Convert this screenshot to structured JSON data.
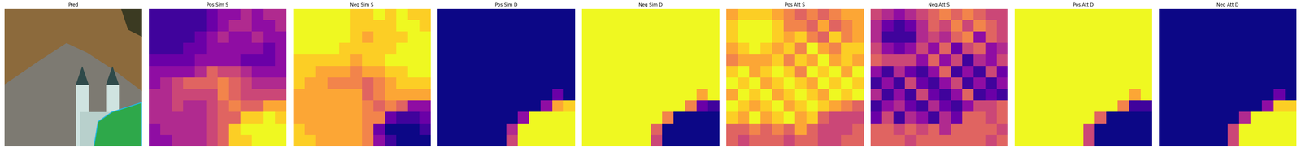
{
  "chart_data": [
    {
      "type": "image",
      "title": "Pred",
      "tick_labels": false
    },
    {
      "type": "heatmap",
      "title": "Pos Sim S",
      "color": "plasma",
      "vmin": 0,
      "vmax": 1,
      "tick_labels": false,
      "cells": [
        [
          0.1,
          0.1,
          0.1,
          0.1,
          0.1,
          0.2,
          0.3,
          0.3,
          0.4,
          0.3,
          0.4,
          0.4
        ],
        [
          0.1,
          0.1,
          0.1,
          0.1,
          0.1,
          0.2,
          0.3,
          0.4,
          0.4,
          0.3,
          0.3,
          0.4
        ],
        [
          0.1,
          0.1,
          0.1,
          0.1,
          0.2,
          0.3,
          0.4,
          0.3,
          0.3,
          0.4,
          0.3,
          0.3
        ],
        [
          0.1,
          0.1,
          0.1,
          0.2,
          0.2,
          0.3,
          0.3,
          0.3,
          0.3,
          0.3,
          0.2,
          0.3
        ],
        [
          0.2,
          0.2,
          0.2,
          0.2,
          0.3,
          0.3,
          0.3,
          0.3,
          0.2,
          0.2,
          0.2,
          0.3
        ],
        [
          0.3,
          0.3,
          0.3,
          0.3,
          0.4,
          0.6,
          0.5,
          0.5,
          0.4,
          0.3,
          0.3,
          0.3
        ],
        [
          0.3,
          0.4,
          0.5,
          0.6,
          0.6,
          0.6,
          0.7,
          0.6,
          0.5,
          0.4,
          0.4,
          0.4
        ],
        [
          0.4,
          0.4,
          0.5,
          0.5,
          0.5,
          0.5,
          0.7,
          0.6,
          0.5,
          0.5,
          0.5,
          0.5
        ],
        [
          0.4,
          0.4,
          0.5,
          0.4,
          0.4,
          0.5,
          0.6,
          0.7,
          0.6,
          0.6,
          0.8,
          0.8
        ],
        [
          0.4,
          0.4,
          0.4,
          0.4,
          0.4,
          0.5,
          0.6,
          0.6,
          0.9,
          0.9,
          1.0,
          0.9
        ],
        [
          0.3,
          0.4,
          0.4,
          0.4,
          0.4,
          0.5,
          0.6,
          0.9,
          1.0,
          1.0,
          1.0,
          1.0
        ],
        [
          0.3,
          0.3,
          0.4,
          0.4,
          0.4,
          0.5,
          0.6,
          0.9,
          0.9,
          1.0,
          1.0,
          1.0
        ]
      ]
    },
    {
      "type": "heatmap",
      "title": "Neg Sim S",
      "color": "plasma",
      "vmin": 0,
      "vmax": 1,
      "tick_labels": false,
      "cells": [
        [
          1.0,
          1.0,
          1.0,
          1.0,
          1.0,
          0.9,
          0.9,
          1.0,
          0.9,
          1.0,
          0.9,
          0.9
        ],
        [
          1.0,
          1.0,
          1.0,
          1.0,
          1.0,
          0.9,
          0.9,
          0.9,
          0.9,
          1.0,
          1.0,
          0.9
        ],
        [
          1.0,
          1.0,
          1.0,
          1.0,
          1.0,
          0.9,
          0.8,
          0.9,
          0.9,
          0.9,
          1.0,
          1.0
        ],
        [
          1.0,
          1.0,
          1.0,
          1.0,
          0.9,
          0.9,
          0.9,
          0.9,
          0.9,
          1.0,
          1.0,
          1.0
        ],
        [
          0.9,
          0.9,
          0.9,
          0.9,
          0.9,
          0.8,
          0.9,
          0.9,
          1.0,
          1.0,
          1.0,
          1.0
        ],
        [
          0.9,
          0.9,
          0.8,
          0.8,
          0.8,
          0.7,
          0.8,
          0.8,
          0.9,
          0.9,
          1.0,
          1.0
        ],
        [
          0.9,
          0.8,
          0.8,
          0.7,
          0.7,
          0.7,
          0.6,
          0.7,
          0.8,
          0.9,
          0.9,
          0.9
        ],
        [
          0.8,
          0.8,
          0.8,
          0.8,
          0.8,
          0.8,
          0.6,
          0.7,
          0.8,
          0.8,
          0.8,
          0.8
        ],
        [
          0.8,
          0.8,
          0.8,
          0.8,
          0.8,
          0.8,
          0.7,
          0.6,
          0.7,
          0.6,
          0.3,
          0.3
        ],
        [
          0.8,
          0.8,
          0.8,
          0.8,
          0.8,
          0.8,
          0.7,
          0.7,
          0.2,
          0.1,
          0.1,
          0.2
        ],
        [
          0.9,
          0.8,
          0.8,
          0.8,
          0.8,
          0.8,
          0.7,
          0.2,
          0.0,
          0.0,
          0.0,
          0.1
        ],
        [
          0.9,
          0.9,
          0.8,
          0.8,
          0.8,
          0.8,
          0.7,
          0.3,
          0.1,
          0.0,
          0.0,
          0.0
        ]
      ]
    },
    {
      "type": "heatmap",
      "title": "Pos Sim D",
      "color": "plasma",
      "vmin": 0,
      "vmax": 1,
      "tick_labels": false,
      "cells": [
        [
          0,
          0,
          0,
          0,
          0,
          0,
          0,
          0,
          0,
          0,
          0,
          0
        ],
        [
          0,
          0,
          0,
          0,
          0,
          0,
          0,
          0,
          0,
          0,
          0,
          0
        ],
        [
          0,
          0,
          0,
          0,
          0,
          0,
          0,
          0,
          0,
          0,
          0,
          0
        ],
        [
          0,
          0,
          0,
          0,
          0,
          0,
          0,
          0,
          0,
          0,
          0,
          0
        ],
        [
          0,
          0,
          0,
          0,
          0,
          0,
          0,
          0,
          0,
          0,
          0,
          0
        ],
        [
          0,
          0,
          0,
          0,
          0,
          0,
          0,
          0,
          0,
          0,
          0,
          0
        ],
        [
          0,
          0,
          0,
          0,
          0,
          0,
          0,
          0,
          0,
          0,
          0,
          0
        ],
        [
          0,
          0,
          0,
          0,
          0,
          0,
          0,
          0,
          0,
          0,
          0.2,
          0
        ],
        [
          0,
          0,
          0,
          0,
          0,
          0,
          0,
          0,
          0,
          0.3,
          0.8,
          0.9
        ],
        [
          0,
          0,
          0,
          0,
          0,
          0,
          0,
          0.3,
          1,
          1,
          1,
          1
        ],
        [
          0,
          0,
          0,
          0,
          0,
          0,
          0.4,
          1,
          1,
          1,
          1,
          1
        ],
        [
          0,
          0,
          0,
          0,
          0,
          0,
          0.5,
          1,
          1,
          1,
          1,
          1
        ]
      ]
    },
    {
      "type": "heatmap",
      "title": "Neg Sim D",
      "color": "plasma",
      "vmin": 0,
      "vmax": 1,
      "tick_labels": false,
      "cells": [
        [
          1,
          1,
          1,
          1,
          1,
          1,
          1,
          1,
          1,
          1,
          1,
          1
        ],
        [
          1,
          1,
          1,
          1,
          1,
          1,
          1,
          1,
          1,
          1,
          1,
          1
        ],
        [
          1,
          1,
          1,
          1,
          1,
          1,
          1,
          1,
          1,
          1,
          1,
          1
        ],
        [
          1,
          1,
          1,
          1,
          1,
          1,
          1,
          1,
          1,
          1,
          1,
          1
        ],
        [
          1,
          1,
          1,
          1,
          1,
          1,
          1,
          1,
          1,
          1,
          1,
          1
        ],
        [
          1,
          1,
          1,
          1,
          1,
          1,
          1,
          1,
          1,
          1,
          1,
          1
        ],
        [
          1,
          1,
          1,
          1,
          1,
          1,
          1,
          1,
          1,
          1,
          1,
          1
        ],
        [
          1,
          1,
          1,
          1,
          1,
          1,
          1,
          1,
          1,
          1,
          0.8,
          1
        ],
        [
          1,
          1,
          1,
          1,
          1,
          1,
          1,
          1,
          1,
          0.7,
          0.2,
          0.1
        ],
        [
          1,
          1,
          1,
          1,
          1,
          1,
          1,
          0.7,
          0,
          0,
          0,
          0
        ],
        [
          1,
          1,
          1,
          1,
          1,
          1,
          0.6,
          0,
          0,
          0,
          0,
          0
        ],
        [
          1,
          1,
          1,
          1,
          1,
          1,
          0.5,
          0,
          0,
          0,
          0,
          0
        ]
      ]
    },
    {
      "type": "heatmap",
      "title": "Pos Att S",
      "color": "plasma",
      "vmin": 0,
      "vmax": 1,
      "tick_labels": false,
      "cells": [
        [
          0.8,
          0.9,
          0.9,
          0.9,
          0.8,
          0.7,
          0.6,
          0.7,
          0.6,
          0.7,
          0.8,
          0.8
        ],
        [
          0.9,
          1.0,
          1.0,
          1.0,
          0.9,
          0.7,
          0.7,
          0.6,
          0.8,
          0.6,
          0.7,
          0.8
        ],
        [
          0.9,
          1.0,
          1.0,
          1.0,
          0.9,
          0.8,
          0.9,
          0.7,
          0.6,
          0.9,
          0.7,
          0.8
        ],
        [
          0.8,
          0.9,
          1.0,
          0.9,
          0.8,
          0.9,
          0.7,
          1.0,
          0.8,
          0.7,
          0.9,
          0.9
        ],
        [
          0.7,
          0.8,
          0.8,
          0.8,
          0.9,
          0.7,
          0.9,
          0.8,
          1.0,
          0.8,
          0.9,
          0.8
        ],
        [
          0.9,
          1.0,
          0.8,
          0.9,
          1.0,
          0.9,
          0.7,
          1.0,
          0.9,
          1.0,
          0.8,
          1.0
        ],
        [
          1.0,
          0.9,
          1.0,
          0.8,
          0.9,
          1.0,
          0.9,
          0.8,
          1.0,
          0.9,
          1.0,
          0.9
        ],
        [
          0.8,
          1.0,
          0.9,
          1.0,
          0.8,
          0.9,
          1.0,
          0.9,
          0.8,
          1.0,
          0.9,
          1.0
        ],
        [
          1.0,
          0.9,
          0.8,
          0.9,
          1.0,
          0.8,
          0.9,
          1.0,
          0.9,
          0.8,
          0.7,
          0.6
        ],
        [
          0.9,
          0.8,
          1.0,
          0.8,
          0.9,
          1.0,
          0.8,
          0.9,
          0.6,
          0.5,
          0.5,
          0.5
        ],
        [
          0.6,
          0.6,
          0.7,
          0.6,
          0.7,
          0.6,
          0.8,
          0.6,
          0.5,
          0.5,
          0.5,
          0.6
        ],
        [
          0.6,
          0.5,
          0.6,
          0.6,
          0.6,
          0.5,
          0.6,
          0.6,
          0.5,
          0.5,
          0.6,
          0.6
        ]
      ]
    },
    {
      "type": "heatmap",
      "title": "Neg Att S",
      "color": "plasma",
      "vmin": 0,
      "vmax": 1,
      "tick_labels": false,
      "cells": [
        [
          0.5,
          0.4,
          0.3,
          0.4,
          0.5,
          0.6,
          0.7,
          0.6,
          0.7,
          0.6,
          0.5,
          0.5
        ],
        [
          0.4,
          0.2,
          0.1,
          0.2,
          0.4,
          0.6,
          0.5,
          0.7,
          0.5,
          0.7,
          0.6,
          0.5
        ],
        [
          0.4,
          0.1,
          0.1,
          0.1,
          0.4,
          0.5,
          0.4,
          0.6,
          0.7,
          0.3,
          0.6,
          0.5
        ],
        [
          0.5,
          0.3,
          0.2,
          0.3,
          0.5,
          0.3,
          0.6,
          0.2,
          0.5,
          0.6,
          0.3,
          0.4
        ],
        [
          0.6,
          0.5,
          0.5,
          0.5,
          0.3,
          0.6,
          0.3,
          0.5,
          0.1,
          0.4,
          0.3,
          0.5
        ],
        [
          0.3,
          0.1,
          0.4,
          0.2,
          0.1,
          0.3,
          0.6,
          0.1,
          0.3,
          0.1,
          0.5,
          0.2
        ],
        [
          0.1,
          0.3,
          0.1,
          0.5,
          0.2,
          0.1,
          0.3,
          0.5,
          0.1,
          0.3,
          0.1,
          0.3
        ],
        [
          0.4,
          0.1,
          0.3,
          0.1,
          0.5,
          0.2,
          0.1,
          0.3,
          0.6,
          0.1,
          0.2,
          0.1
        ],
        [
          0.1,
          0.3,
          0.4,
          0.2,
          0.1,
          0.4,
          0.2,
          0.1,
          0.3,
          0.5,
          0.5,
          0.6
        ],
        [
          0.2,
          0.5,
          0.1,
          0.4,
          0.3,
          0.1,
          0.4,
          0.2,
          0.6,
          0.6,
          0.5,
          0.6
        ],
        [
          0.6,
          0.6,
          0.5,
          0.6,
          0.5,
          0.6,
          0.4,
          0.6,
          0.6,
          0.6,
          0.6,
          0.5
        ],
        [
          0.6,
          0.6,
          0.6,
          0.5,
          0.6,
          0.6,
          0.6,
          0.6,
          0.6,
          0.6,
          0.5,
          0.6
        ]
      ]
    },
    {
      "type": "heatmap",
      "title": "Pos Att D",
      "color": "plasma",
      "vmin": 0,
      "vmax": 1,
      "tick_labels": false,
      "cells": [
        [
          1,
          1,
          1,
          1,
          1,
          1,
          1,
          1,
          1,
          1,
          1,
          1
        ],
        [
          1,
          1,
          1,
          1,
          1,
          1,
          1,
          1,
          1,
          1,
          1,
          1
        ],
        [
          1,
          1,
          1,
          1,
          1,
          1,
          1,
          1,
          1,
          1,
          1,
          1
        ],
        [
          1,
          1,
          1,
          1,
          1,
          1,
          1,
          1,
          1,
          1,
          1,
          1
        ],
        [
          1,
          1,
          1,
          1,
          1,
          1,
          1,
          1,
          1,
          1,
          1,
          1
        ],
        [
          1,
          1,
          1,
          1,
          1,
          1,
          1,
          1,
          1,
          1,
          1,
          1
        ],
        [
          1,
          1,
          1,
          1,
          1,
          1,
          1,
          1,
          1,
          1,
          1,
          1
        ],
        [
          1,
          1,
          1,
          1,
          1,
          1,
          1,
          1,
          1,
          1,
          0.8,
          1
        ],
        [
          1,
          1,
          1,
          1,
          1,
          1,
          1,
          1,
          1,
          0.7,
          0.1,
          0.1
        ],
        [
          1,
          1,
          1,
          1,
          1,
          1,
          1,
          0.6,
          0,
          0,
          0,
          0
        ],
        [
          1,
          1,
          1,
          1,
          1,
          1,
          0.5,
          0,
          0,
          0,
          0,
          0
        ],
        [
          1,
          1,
          1,
          1,
          1,
          1,
          0.5,
          0,
          0,
          0,
          0,
          0
        ]
      ]
    },
    {
      "type": "heatmap",
      "title": "Neg Att D",
      "color": "plasma",
      "vmin": 0,
      "vmax": 1,
      "tick_labels": false,
      "cells": [
        [
          0,
          0,
          0,
          0,
          0,
          0,
          0,
          0,
          0,
          0,
          0,
          0
        ],
        [
          0,
          0,
          0,
          0,
          0,
          0,
          0,
          0,
          0,
          0,
          0,
          0
        ],
        [
          0,
          0,
          0,
          0,
          0,
          0,
          0,
          0,
          0,
          0,
          0,
          0
        ],
        [
          0,
          0,
          0,
          0,
          0,
          0,
          0,
          0,
          0,
          0,
          0,
          0
        ],
        [
          0,
          0,
          0,
          0,
          0,
          0,
          0,
          0,
          0,
          0,
          0,
          0
        ],
        [
          0,
          0,
          0,
          0,
          0,
          0,
          0,
          0,
          0,
          0,
          0,
          0
        ],
        [
          0,
          0,
          0,
          0,
          0,
          0,
          0,
          0,
          0,
          0,
          0,
          0
        ],
        [
          0,
          0,
          0,
          0,
          0,
          0,
          0,
          0,
          0,
          0,
          0.2,
          0
        ],
        [
          0,
          0,
          0,
          0,
          0,
          0,
          0,
          0,
          0,
          0.3,
          0.9,
          0.9
        ],
        [
          0,
          0,
          0,
          0,
          0,
          0,
          0,
          0.4,
          1,
          1,
          1,
          1
        ],
        [
          0,
          0,
          0,
          0,
          0,
          0,
          0.5,
          1,
          1,
          1,
          1,
          1
        ],
        [
          0,
          0,
          0,
          0,
          0,
          0,
          0.5,
          1,
          1,
          1,
          1,
          1
        ]
      ]
    }
  ]
}
